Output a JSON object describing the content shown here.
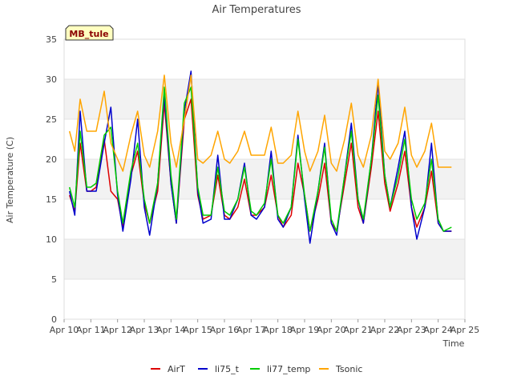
{
  "chart_data": {
    "type": "line",
    "title": "Air Temperatures",
    "xlabel": "Time",
    "ylabel": "Air Temperature (C)",
    "site_label": "MB_tule",
    "ylim": [
      0,
      35
    ],
    "yticks": [
      0,
      5,
      10,
      15,
      20,
      25,
      30,
      35
    ],
    "xlim": [
      0,
      15
    ],
    "xtick_labels": [
      "Apr 10",
      "Apr 11",
      "Apr 12",
      "Apr 13",
      "Apr 14",
      "Apr 15",
      "Apr 16",
      "Apr 17",
      "Apr 18",
      "Apr 19",
      "Apr 20",
      "Apr 21",
      "Apr 22",
      "Apr 23",
      "Apr 24",
      "Apr 25"
    ],
    "grid": true,
    "legend_position": "bottom",
    "series": [
      {
        "name": "AirT",
        "color": "#dd0000",
        "x": [
          0.2,
          0.4,
          0.6,
          0.85,
          1.0,
          1.2,
          1.5,
          1.75,
          2.0,
          2.2,
          2.5,
          2.75,
          3.0,
          3.2,
          3.5,
          3.75,
          4.0,
          4.2,
          4.5,
          4.75,
          5.0,
          5.2,
          5.5,
          5.75,
          6.0,
          6.2,
          6.5,
          6.75,
          7.0,
          7.2,
          7.5,
          7.75,
          8.0,
          8.2,
          8.5,
          8.75,
          9.0,
          9.2,
          9.5,
          9.75,
          10.0,
          10.2,
          10.5,
          10.75,
          11.0,
          11.2,
          11.5,
          11.75,
          12.0,
          12.2,
          12.5,
          12.75,
          13.0,
          13.2,
          13.5,
          13.75,
          14.0,
          14.2,
          14.5
        ],
        "y": [
          15.5,
          13.5,
          22,
          16,
          16,
          16.5,
          22.5,
          16,
          15,
          11.5,
          18,
          21,
          14.5,
          12,
          16,
          27,
          17,
          12,
          25,
          27.5,
          15.5,
          12.5,
          13,
          18,
          13,
          12.5,
          14,
          17.5,
          13,
          13,
          14,
          18,
          13,
          11.5,
          13,
          19.5,
          15.5,
          11,
          15,
          19.5,
          12,
          11,
          17,
          22,
          14,
          12,
          19,
          26,
          17,
          13.5,
          17,
          21,
          14,
          11.5,
          14,
          18.5,
          12,
          11,
          11
        ]
      },
      {
        "name": "li75_t",
        "color": "#0000cc",
        "x": [
          0.2,
          0.4,
          0.6,
          0.85,
          1.0,
          1.2,
          1.5,
          1.75,
          2.0,
          2.2,
          2.5,
          2.75,
          3.0,
          3.2,
          3.5,
          3.75,
          4.0,
          4.2,
          4.5,
          4.75,
          5.0,
          5.2,
          5.5,
          5.75,
          6.0,
          6.2,
          6.5,
          6.75,
          7.0,
          7.2,
          7.5,
          7.75,
          8.0,
          8.2,
          8.5,
          8.75,
          9.0,
          9.2,
          9.5,
          9.75,
          10.0,
          10.2,
          10.5,
          10.75,
          11.0,
          11.2,
          11.5,
          11.75,
          12.0,
          12.2,
          12.5,
          12.75,
          13.0,
          13.2,
          13.5,
          13.75,
          14.0,
          14.2,
          14.5
        ],
        "y": [
          16,
          13,
          26,
          16,
          16,
          16,
          22,
          26.5,
          15.5,
          11,
          17.5,
          25,
          14,
          10.5,
          17,
          28,
          17,
          12,
          26,
          31,
          16,
          12,
          12.5,
          20.5,
          12.5,
          12.5,
          15,
          19.5,
          13,
          12.5,
          14,
          21,
          12.5,
          11.5,
          14,
          23,
          15,
          9.5,
          16,
          22,
          12,
          10.5,
          18,
          24.5,
          15,
          12,
          20,
          29.5,
          18,
          14,
          19,
          23.5,
          14,
          10,
          14,
          22,
          12,
          11,
          11
        ]
      },
      {
        "name": "li77_temp",
        "color": "#00cc00",
        "x": [
          0.2,
          0.4,
          0.6,
          0.85,
          1.0,
          1.2,
          1.5,
          1.75,
          2.0,
          2.2,
          2.5,
          2.75,
          3.0,
          3.2,
          3.5,
          3.75,
          4.0,
          4.2,
          4.5,
          4.75,
          5.0,
          5.2,
          5.5,
          5.75,
          6.0,
          6.2,
          6.5,
          6.75,
          7.0,
          7.2,
          7.5,
          7.75,
          8.0,
          8.2,
          8.5,
          8.75,
          9.0,
          9.2,
          9.5,
          9.75,
          10.0,
          10.2,
          10.5,
          10.75,
          11.0,
          11.2,
          11.5,
          11.75,
          12.0,
          12.2,
          12.5,
          12.75,
          13.0,
          13.2,
          13.5,
          13.75,
          14.0,
          14.2,
          14.5
        ],
        "y": [
          16.5,
          14,
          23.5,
          16.5,
          16.5,
          17,
          23,
          24,
          16,
          12,
          18.5,
          22,
          15,
          12,
          17,
          29,
          18,
          12.5,
          27,
          29,
          16.5,
          13,
          13,
          19,
          13.5,
          13,
          15,
          19,
          13.5,
          13,
          14.5,
          20,
          13,
          12,
          14,
          22.5,
          15.5,
          11,
          16,
          21.5,
          12.5,
          11,
          18,
          23.5,
          15,
          12.5,
          20,
          28,
          18,
          14,
          18,
          22.5,
          15,
          12.5,
          14.5,
          20,
          12.5,
          11,
          11.5
        ]
      },
      {
        "name": "Tsonic",
        "color": "#ffa500",
        "x": [
          0.2,
          0.4,
          0.6,
          0.85,
          1.0,
          1.2,
          1.5,
          1.75,
          2.0,
          2.2,
          2.5,
          2.75,
          3.0,
          3.2,
          3.5,
          3.75,
          4.0,
          4.2,
          4.5,
          4.75,
          5.0,
          5.2,
          5.5,
          5.75,
          6.0,
          6.2,
          6.5,
          6.75,
          7.0,
          7.2,
          7.5,
          7.75,
          8.0,
          8.2,
          8.5,
          8.75,
          9.0,
          9.2,
          9.5,
          9.75,
          10.0,
          10.2,
          10.5,
          10.75,
          11.0,
          11.2,
          11.5,
          11.75,
          12.0,
          12.2,
          12.5,
          12.75,
          13.0,
          13.2,
          13.5,
          13.75,
          14.0,
          14.2,
          14.5
        ],
        "y": [
          23.5,
          21,
          27.5,
          23.5,
          23.5,
          23.5,
          28.5,
          22,
          20,
          18.5,
          23,
          26,
          20.5,
          19,
          23.5,
          30.5,
          22,
          19,
          25,
          30.5,
          20,
          19.5,
          20.5,
          23.5,
          20,
          19.5,
          21,
          23.5,
          20.5,
          20.5,
          20.5,
          24,
          19.5,
          19.5,
          20.5,
          26,
          21,
          18.5,
          21,
          25.5,
          19.5,
          18.5,
          22.5,
          27,
          20.5,
          19,
          23,
          30,
          21,
          20,
          22,
          26.5,
          20.5,
          19,
          21,
          24.5,
          19,
          19,
          19
        ]
      }
    ]
  }
}
